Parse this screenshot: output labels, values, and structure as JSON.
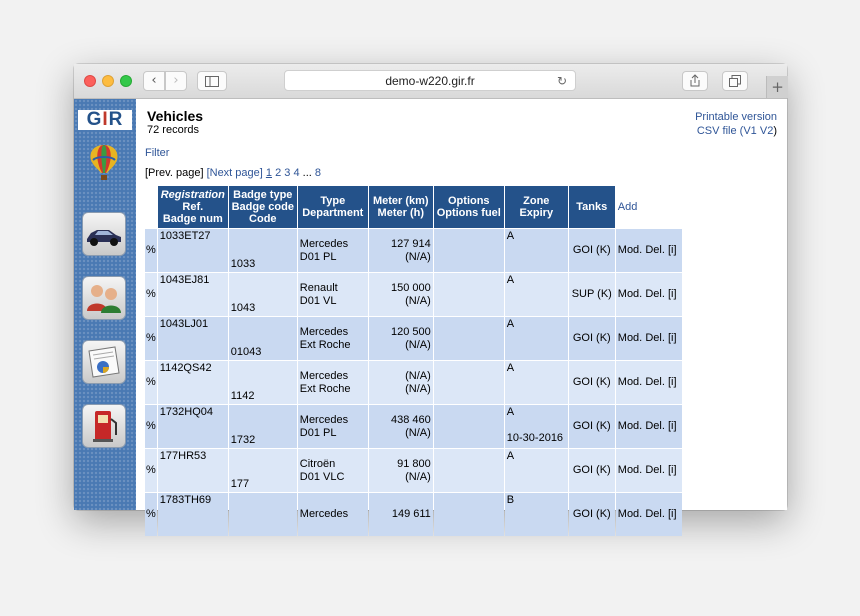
{
  "browser": {
    "url": "demo-w220.gir.fr",
    "back_icon": "‹",
    "forward_icon": "›",
    "new_tab_icon": "+"
  },
  "sidebar": {
    "logo_text_left": "G",
    "logo_text_mid": "I",
    "logo_text_right": "R",
    "items": [
      {
        "icon": "vehicle-car-icon"
      },
      {
        "icon": "users-icon"
      },
      {
        "icon": "report-chart-icon"
      },
      {
        "icon": "fuel-pump-icon"
      }
    ]
  },
  "page": {
    "title": "Vehicles",
    "records": "72 records",
    "printable_link": "Printable version",
    "csv_label": "CSV file (",
    "csv_v1": "V1",
    "csv_v2": "V2",
    "csv_close": ")",
    "filter_link": "Filter",
    "pager": {
      "prev": "[Prev. page]",
      "next": "[Next page]",
      "pages": [
        "1",
        "2",
        "3",
        "4"
      ],
      "ellipsis": "...",
      "last": "8"
    }
  },
  "table": {
    "headers": {
      "reg_line1": "Registration",
      "reg_line2": "Ref.",
      "reg_line3": "Badge num",
      "badge_line1": "Badge type",
      "badge_line2": "Badge code",
      "badge_line3": "Code",
      "type_line1": "Type",
      "type_line2": "Department",
      "meter_line1": "Meter (km)",
      "meter_line2": "Meter (h)",
      "options_line1": "Options",
      "options_line2": "Options fuel",
      "zone_line1": "Zone",
      "zone_line2": "Expiry",
      "tanks": "Tanks",
      "add": "Add"
    },
    "rows": [
      {
        "pct": "%",
        "reg": "1033ET27",
        "badge": "1033",
        "type1": "Mercedes",
        "type2": "D01 PL",
        "meter1": "127 914",
        "meter2": "(N/A)",
        "zone1": "A",
        "zone2": "",
        "tank": "GOI (K)",
        "mod": "Mod.",
        "del": "Del.",
        "info": "[i]"
      },
      {
        "pct": "%",
        "reg": "1043EJ81",
        "badge": "1043",
        "type1": "Renault",
        "type2": "D01 VL",
        "meter1": "150 000",
        "meter2": "(N/A)",
        "zone1": "A",
        "zone2": "",
        "tank": "SUP (K)",
        "mod": "Mod.",
        "del": "Del.",
        "info": "[i]"
      },
      {
        "pct": "%",
        "reg": "1043LJ01",
        "badge": "01043",
        "type1": "Mercedes",
        "type2": "Ext Roche",
        "meter1": "120 500",
        "meter2": "(N/A)",
        "zone1": "A",
        "zone2": "",
        "tank": "GOI (K)",
        "mod": "Mod.",
        "del": "Del.",
        "info": "[i]"
      },
      {
        "pct": "%",
        "reg": "1142QS42",
        "badge": "1142",
        "type1": "Mercedes",
        "type2": "Ext Roche",
        "meter1": "(N/A)",
        "meter2": "(N/A)",
        "zone1": "A",
        "zone2": "",
        "tank": "GOI (K)",
        "mod": "Mod.",
        "del": "Del.",
        "info": "[i]"
      },
      {
        "pct": "%",
        "reg": "1732HQ04",
        "badge": "1732",
        "type1": "Mercedes",
        "type2": "D01 PL",
        "meter1": "438 460",
        "meter2": "(N/A)",
        "zone1": "A",
        "zone2": "10-30-2016",
        "tank": "GOI (K)",
        "mod": "Mod.",
        "del": "Del.",
        "info": "[i]"
      },
      {
        "pct": "%",
        "reg": "177HR53",
        "badge": "177",
        "type1": "Citroën",
        "type2": "D01 VLC",
        "meter1": "91 800",
        "meter2": "(N/A)",
        "zone1": "A",
        "zone2": "",
        "tank": "GOI (K)",
        "mod": "Mod.",
        "del": "Del.",
        "info": "[i]"
      },
      {
        "pct": "%",
        "reg": "1783TH69",
        "badge": "",
        "type1": "Mercedes",
        "type2": "",
        "meter1": "149 611",
        "meter2": "",
        "zone1": "B",
        "zone2": "",
        "tank": "GOI (K)",
        "mod": "Mod.",
        "del": "Del.",
        "info": "[i]"
      }
    ]
  },
  "colors": {
    "header_bg": "#24528a",
    "row_odd": "#c9d9f1",
    "row_even": "#dce7f7",
    "link": "#2f5597",
    "sidebar": "#4a79b3"
  }
}
